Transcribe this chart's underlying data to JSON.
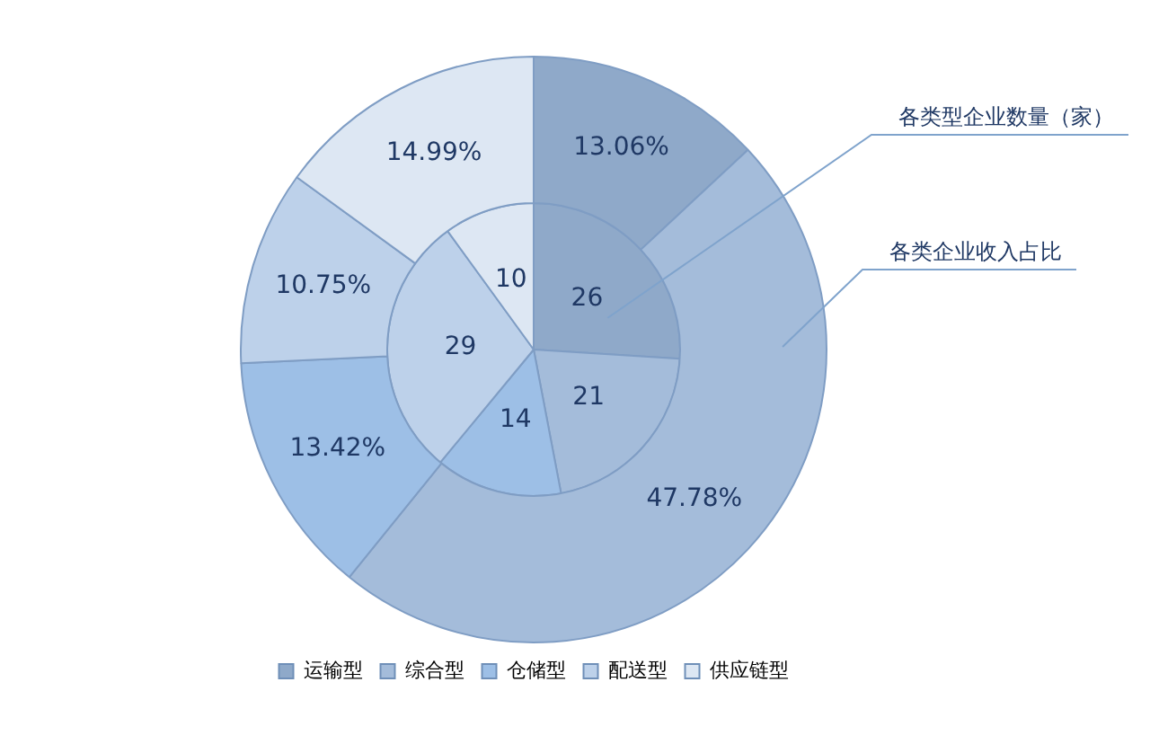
{
  "chart_data": {
    "type": "pie",
    "categories": [
      "运输型",
      "综合型",
      "仓储型",
      "配送型",
      "供应链型"
    ],
    "colors": [
      "#8fa9c9",
      "#a4bcda",
      "#9dbfe6",
      "#bdd1ea",
      "#dde7f3"
    ],
    "series": [
      {
        "name": "各类型企业数量（家）",
        "values": [
          26,
          21,
          14,
          29,
          10
        ]
      },
      {
        "name": "各类企业收入占比",
        "values": [
          13.06,
          47.78,
          13.42,
          10.75,
          14.99
        ],
        "value_labels": [
          "13.06%",
          "47.78%",
          "13.42%",
          "10.75%",
          "14.99%"
        ]
      }
    ],
    "data_labels": true,
    "legend": "bottom"
  }
}
